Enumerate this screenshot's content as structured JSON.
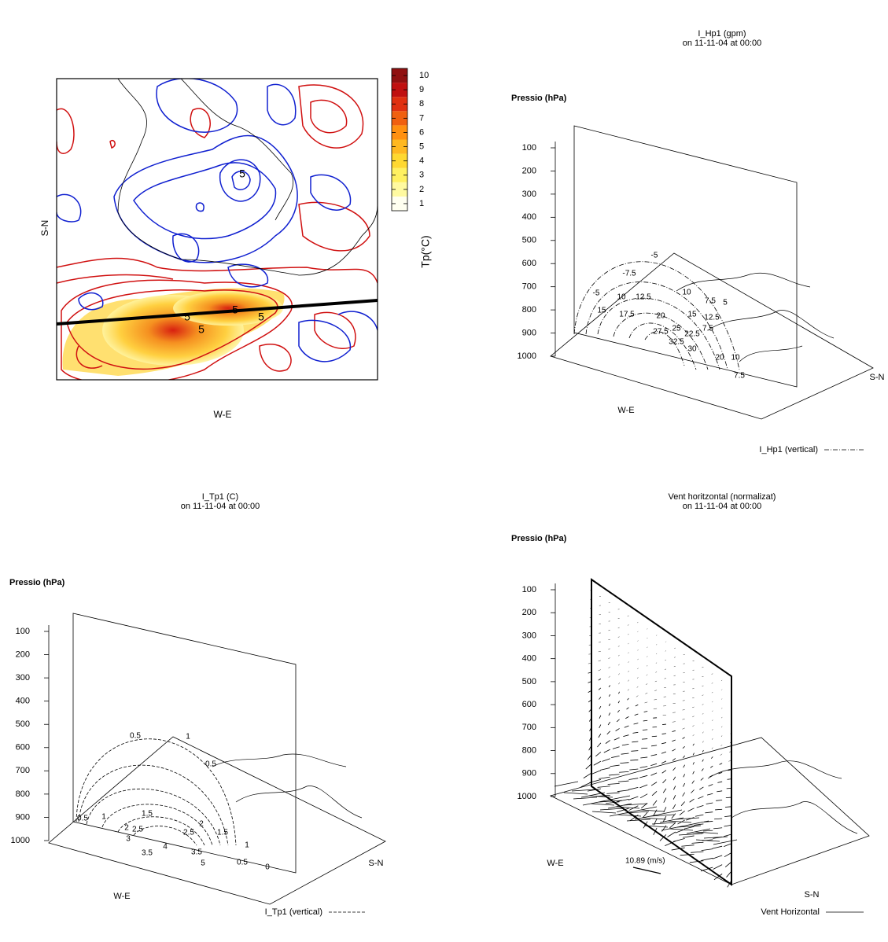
{
  "chart_data": [
    {
      "type": "contour",
      "xlabel": "W-E",
      "ylabel": "S-N",
      "colorbar": {
        "label": "Tp(°C)",
        "clim": [
          0.5,
          10.5
        ],
        "ticks": [
          1,
          2,
          3,
          4,
          5,
          6,
          7,
          8,
          9,
          10
        ],
        "colors": [
          "#fffff0",
          "#fffaa0",
          "#fff060",
          "#ffd830",
          "#ffb820",
          "#ff9010",
          "#f06010",
          "#e03010",
          "#c01010",
          "#901010"
        ]
      },
      "contour_labels": [
        5,
        5,
        5,
        5,
        5
      ]
    },
    {
      "type": "section",
      "title": "I_Hp1 (gpm)",
      "subtitle": "on 11-11-04 at 00:00",
      "ylabel": "Pressio (hPa)",
      "ylim": [
        1000,
        100
      ],
      "yticks": [
        100,
        200,
        300,
        400,
        500,
        600,
        700,
        800,
        900,
        1000
      ],
      "xlabel": "W-E",
      "zlabel": "S-N",
      "legend": "I_Hp1 (vertical)",
      "contour_labels": [
        -5,
        -7.5,
        -5,
        10,
        12.5,
        10,
        7.5,
        5,
        15,
        17.5,
        20,
        15,
        12.5,
        27.5,
        25,
        22.5,
        7.5,
        32.5,
        30,
        20,
        10,
        7.5
      ]
    },
    {
      "type": "section",
      "title": "I_Tp1 (C)",
      "subtitle": "on 11-11-04 at 00:00",
      "ylabel": "Pressio (hPa)",
      "ylim": [
        1000,
        100
      ],
      "yticks": [
        100,
        200,
        300,
        400,
        500,
        600,
        700,
        800,
        900,
        1000
      ],
      "xlabel": "W-E",
      "zlabel": "S-N",
      "legend": "I_Tp1 (vertical)",
      "contour_labels": [
        0.5,
        1,
        0.5,
        0.5,
        1,
        1.5,
        2,
        2,
        1.5,
        2.5,
        2.5,
        3,
        3.5,
        4,
        3.5,
        5,
        1,
        0.5,
        0
      ]
    },
    {
      "type": "vector",
      "title": "Vent horitzontal (normalizat)",
      "subtitle": "on 11-11-04 at 00:00",
      "ylabel": "Pressio (hPa)",
      "ylim": [
        1000,
        100
      ],
      "yticks": [
        100,
        200,
        300,
        400,
        500,
        600,
        700,
        800,
        900,
        1000
      ],
      "xlabel": "W-E",
      "zlabel": "S-N",
      "legend": "Vent Horizontal",
      "reference": {
        "value": 10.89,
        "label": "10.89 (m/s)"
      }
    }
  ]
}
